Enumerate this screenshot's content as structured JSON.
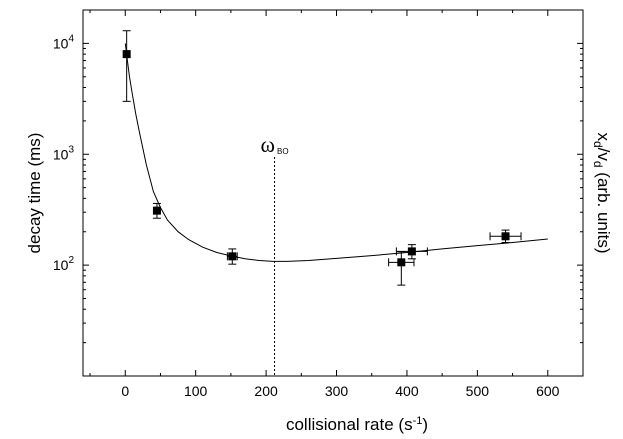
{
  "chart_data": {
    "type": "scatter",
    "xlabel": {
      "main": "collisional rate (s",
      "sup": "-1",
      "tail": ")"
    },
    "ylabel": "decay time (ms)",
    "y2label": {
      "p1": "x",
      "s1": "d",
      "p2": "/v",
      "s2": "d",
      "tail": " (arb. units)"
    },
    "xlim": [
      -60,
      650
    ],
    "ylim": [
      10,
      20000
    ],
    "yscale": "log",
    "grid": false,
    "x_ticks": [
      0,
      100,
      200,
      300,
      400,
      500,
      600
    ],
    "y_ticks": [
      {
        "value": 100,
        "base": "10",
        "exp": "2"
      },
      {
        "value": 1000,
        "base": "10",
        "exp": "3"
      },
      {
        "value": 10000,
        "base": "10",
        "exp": "4"
      }
    ],
    "annotation": {
      "symbol": "ω",
      "sub": "BO",
      "x": 212
    },
    "points": [
      {
        "x": 2,
        "y": 8000,
        "xerr": 0,
        "yerr_low": 3000,
        "yerr_high": 13000
      },
      {
        "x": 45,
        "y": 310,
        "xerr": 0,
        "yerr_low": 265,
        "yerr_high": 360
      },
      {
        "x": 152,
        "y": 120,
        "xerr": 7,
        "yerr_low": 102,
        "yerr_high": 140
      },
      {
        "x": 392,
        "y": 106,
        "xerr": 18,
        "yerr_low": 66,
        "yerr_high": 132
      },
      {
        "x": 407,
        "y": 133,
        "xerr": 22,
        "yerr_low": 114,
        "yerr_high": 153
      },
      {
        "x": 540,
        "y": 182,
        "xerr": 22,
        "yerr_low": 160,
        "yerr_high": 207
      }
    ],
    "fit_curve": [
      [
        0,
        10000
      ],
      [
        3,
        7000
      ],
      [
        6,
        5000
      ],
      [
        10,
        3500
      ],
      [
        15,
        2300
      ],
      [
        20,
        1600
      ],
      [
        30,
        800
      ],
      [
        40,
        460
      ],
      [
        50,
        330
      ],
      [
        60,
        255
      ],
      [
        75,
        200
      ],
      [
        90,
        170
      ],
      [
        110,
        145
      ],
      [
        130,
        130
      ],
      [
        150,
        121
      ],
      [
        170,
        114
      ],
      [
        190,
        110
      ],
      [
        210,
        108
      ],
      [
        230,
        108
      ],
      [
        260,
        110
      ],
      [
        300,
        115
      ],
      [
        350,
        122
      ],
      [
        400,
        130
      ],
      [
        450,
        140
      ],
      [
        500,
        150
      ],
      [
        550,
        160
      ],
      [
        600,
        172
      ]
    ]
  }
}
